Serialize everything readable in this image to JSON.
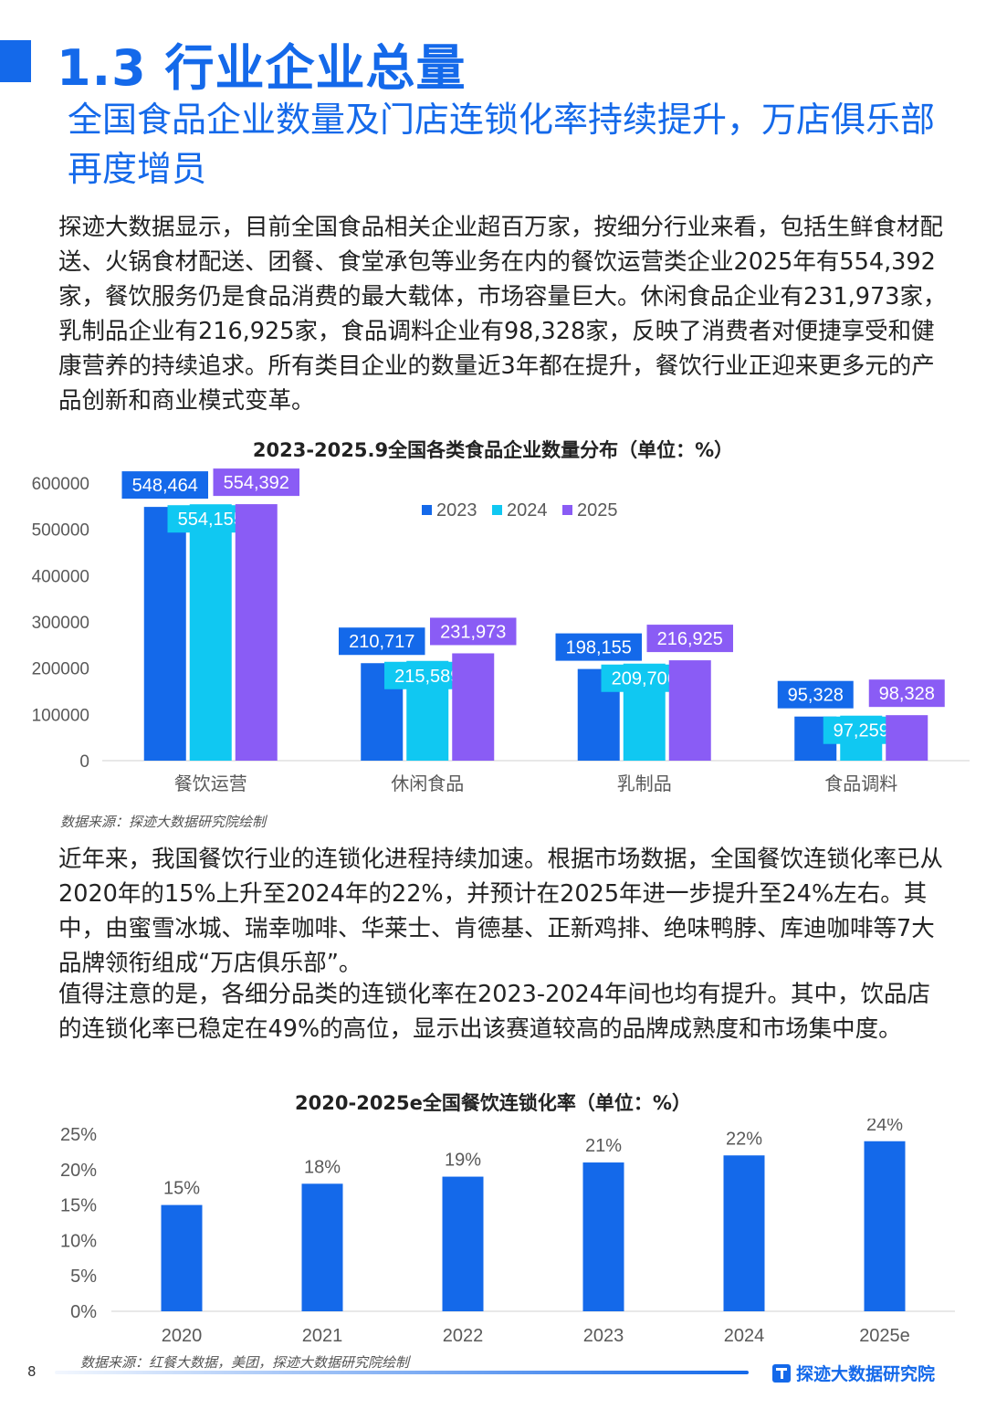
{
  "header": {
    "section_title": "1.3 行业企业总量",
    "subtitle": "全国食品企业数量及门店连锁化率持续提升，万店俱乐部再度增员"
  },
  "paragraphs": {
    "p1": "探迹大数据显示，目前全国食品相关企业超百万家，按细分行业来看，包括生鲜食材配送、火锅食材配送、团餐、食堂承包等业务在内的餐饮运营类企业2025年有554,392家，餐饮服务仍是食品消费的最大载体，市场容量巨大。休闲食品企业有231,973家，乳制品企业有216,925家，食品调料企业有98,328家，反映了消费者对便捷享受和健康营养的持续追求。所有类目企业的数量近3年都在提升，餐饮行业正迎来更多元的产品创新和商业模式变革。",
    "p2": "近年来，我国餐饮行业的连锁化进程持续加速。根据市场数据，全国餐饮连锁化率已从2020年的15%上升至2024年的22%，并预计在2025年进一步提升至24%左右。其中，由蜜雪冰城、瑞幸咖啡、华莱士、肯德基、正新鸡排、绝味鸭脖、库迪咖啡等7大品牌领衔组成“万店俱乐部”。",
    "p3": "值得注意的是，各细分品类的连锁化率在2023-2024年间也均有提升。其中，饮品店的连锁化率已稳定在49%的高位，显示出该赛道较高的品牌成熟度和市场集中度。"
  },
  "chart_data": [
    {
      "type": "bar",
      "title": "2023-2025.9全国各类食品企业数量分布（单位：%）",
      "categories": [
        "餐饮运营",
        "休闲食品",
        "乳制品",
        "食品调料"
      ],
      "series": [
        {
          "name": "2023",
          "values": [
            548464,
            210717,
            198155,
            95328
          ],
          "labels": [
            "548,464",
            "210,717",
            "198,155",
            "95,328"
          ],
          "color": "#1469ea"
        },
        {
          "name": "2024",
          "values": [
            554155,
            215589,
            209706,
            97259
          ],
          "labels": [
            "554,155",
            "215,589",
            "209,706",
            "97,259"
          ],
          "color": "#10c8f2"
        },
        {
          "name": "2025",
          "values": [
            554392,
            231973,
            216925,
            98328
          ],
          "labels": [
            "554,392",
            "231,973",
            "216,925",
            "98,328"
          ],
          "color": "#8a5cf5"
        }
      ],
      "yticks": [
        "0",
        "100000",
        "200000",
        "300000",
        "400000",
        "500000",
        "600000"
      ],
      "ylim": [
        0,
        600000
      ],
      "legend": "top-right",
      "grid": false
    },
    {
      "type": "bar",
      "title": "2020-2025e全国餐饮连锁化率（单位：%）",
      "categories": [
        "2020",
        "2021",
        "2022",
        "2023",
        "2024",
        "2025e"
      ],
      "values": [
        15,
        18,
        19,
        21,
        22,
        24
      ],
      "labels": [
        "15%",
        "18%",
        "19%",
        "21%",
        "22%",
        "24%"
      ],
      "yticks": [
        "0%",
        "5%",
        "10%",
        "15%",
        "20%",
        "25%"
      ],
      "ylim": [
        0,
        25
      ],
      "color": "#1469ea",
      "grid": false
    }
  ],
  "sources": {
    "chart1": "数据来源：探迹大数据研究院绘制",
    "chart2": "数据来源：红餐大数据，美团，探迹大数据研究院绘制"
  },
  "footer": {
    "page_number": "8",
    "brand": "探迹大数据研究院"
  }
}
